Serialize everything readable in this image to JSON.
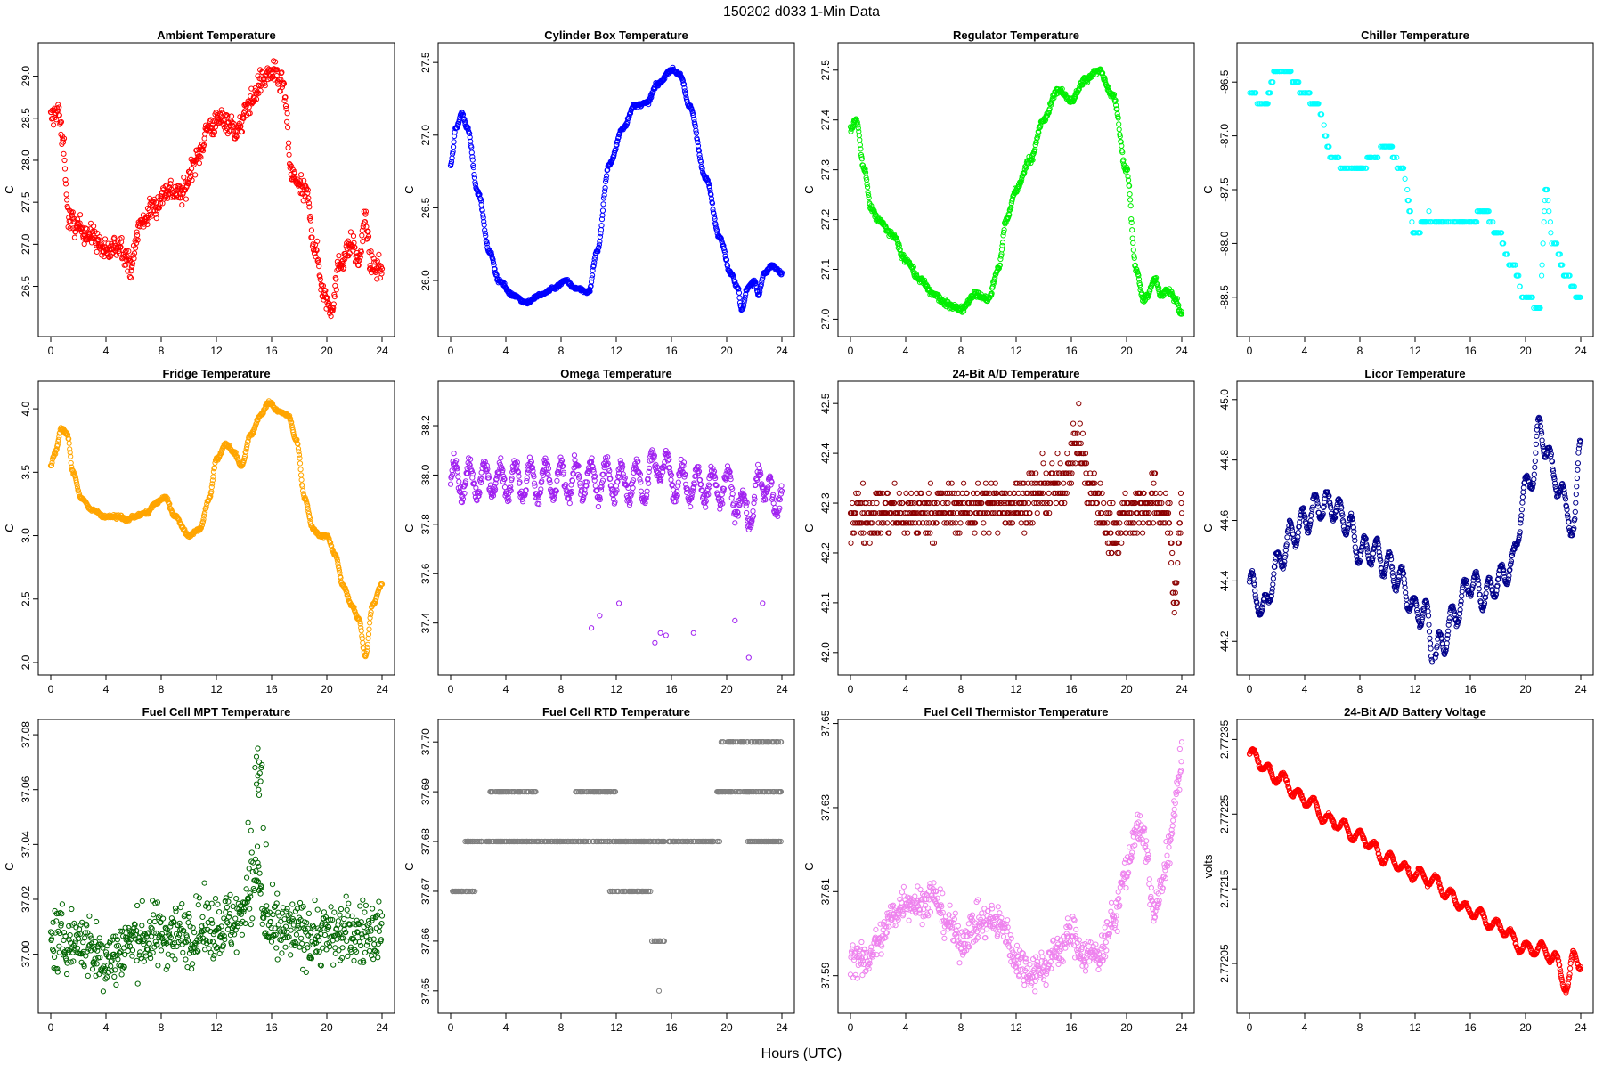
{
  "figure": {
    "title": "150202   d033   1-Min Data",
    "xlabel": "Hours (UTC)"
  },
  "chart_data": [
    {
      "type": "scatter",
      "title": "Ambient Temperature",
      "ylabel": "C",
      "color": "#ff0000",
      "xlim": [
        0,
        24
      ],
      "ylim": [
        26.05,
        29.25
      ],
      "yticks": [
        "26.5",
        "27.0",
        "27.5",
        "28.0",
        "28.5",
        "29.0"
      ],
      "noise": 0.13,
      "density": 1.0,
      "x": [
        0,
        0.5,
        0.9,
        1.3,
        2,
        3,
        4,
        5,
        5.8,
        6.5,
        7.5,
        8.5,
        9.5,
        10.5,
        11.5,
        12.5,
        13.5,
        14.5,
        15.3,
        16,
        16.8,
        17.5,
        18.5,
        19.2,
        19.8,
        20.3,
        21,
        21.8,
        22.3,
        22.8,
        23.2,
        24
      ],
      "y": [
        28.5,
        28.6,
        28.2,
        27.3,
        27.2,
        27.1,
        26.9,
        27.0,
        26.75,
        27.25,
        27.45,
        27.65,
        27.6,
        28.0,
        28.4,
        28.5,
        28.35,
        28.7,
        28.95,
        29.05,
        28.9,
        27.8,
        27.6,
        26.9,
        26.4,
        26.25,
        26.8,
        27.0,
        26.8,
        27.3,
        26.75,
        26.7
      ]
    },
    {
      "type": "scatter",
      "title": "Cylinder Box Temperature",
      "ylabel": "C",
      "color": "#0000ff",
      "xlim": [
        0,
        24
      ],
      "ylim": [
        25.7,
        27.55
      ],
      "yticks": [
        "26.0",
        "26.5",
        "27.0",
        "27.5"
      ],
      "noise": 0.012,
      "density": 1.0,
      "x": [
        0,
        0.4,
        0.8,
        1.2,
        2,
        2.8,
        3.5,
        4.5,
        5.5,
        6.5,
        7.5,
        8.3,
        9,
        10,
        10.6,
        11.5,
        12.5,
        13.3,
        14.2,
        15,
        16,
        16.6,
        17.3,
        18.5,
        19.5,
        20.3,
        20.8,
        21.1,
        21.5,
        22,
        22.3,
        22.7,
        23.3,
        24
      ],
      "y": [
        26.8,
        27.05,
        27.15,
        27.05,
        26.6,
        26.2,
        26.0,
        25.9,
        25.85,
        25.9,
        25.95,
        26.0,
        25.95,
        25.92,
        26.2,
        26.8,
        27.05,
        27.2,
        27.22,
        27.35,
        27.45,
        27.42,
        27.2,
        26.7,
        26.3,
        26.05,
        25.95,
        25.8,
        25.95,
        26.0,
        25.9,
        26.05,
        26.1,
        26.05
      ]
    },
    {
      "type": "scatter",
      "title": "Regulator Temperature",
      "ylabel": "C",
      "color": "#00ee00",
      "xlim": [
        0,
        24
      ],
      "ylim": [
        26.99,
        27.53
      ],
      "yticks": [
        "27.0",
        "27.1",
        "27.2",
        "27.3",
        "27.4",
        "27.5"
      ],
      "noise": 0.006,
      "density": 1.0,
      "x": [
        0,
        0.4,
        1,
        1.5,
        2,
        3,
        4,
        5,
        6,
        7,
        8,
        9,
        10,
        10.7,
        11.3,
        12,
        13,
        14,
        15,
        16,
        17,
        18,
        19,
        20,
        20.7,
        21.2,
        21.6,
        22,
        22.5,
        23,
        23.5,
        24
      ],
      "y": [
        27.38,
        27.4,
        27.3,
        27.22,
        27.2,
        27.17,
        27.12,
        27.08,
        27.05,
        27.03,
        27.02,
        27.05,
        27.04,
        27.1,
        27.2,
        27.26,
        27.32,
        27.4,
        27.46,
        27.44,
        27.48,
        27.5,
        27.45,
        27.3,
        27.1,
        27.04,
        27.05,
        27.08,
        27.05,
        27.06,
        27.04,
        27.01
      ]
    },
    {
      "type": "scatter",
      "title": "Chiller Temperature",
      "ylabel": "C",
      "color": "#00ffff",
      "xlim": [
        0,
        24
      ],
      "ylim": [
        -88.75,
        -86.25
      ],
      "yticks": [
        "-86.5",
        "-87.0",
        "-87.5",
        "-88.0",
        "-88.5"
      ],
      "noise": 0,
      "density": 0.55,
      "quantize": 0.1,
      "x": [
        0,
        1,
        2,
        3,
        4,
        5,
        6,
        7,
        8,
        9,
        10,
        11,
        12,
        13,
        14,
        15,
        16,
        17,
        18,
        19,
        20,
        21,
        21.5,
        22,
        23,
        24
      ],
      "y": [
        -86.55,
        -86.75,
        -86.4,
        -86.45,
        -86.6,
        -86.75,
        -87.2,
        -87.3,
        -87.3,
        -87.2,
        -87.1,
        -87.3,
        -87.9,
        -87.75,
        -87.8,
        -87.75,
        -87.8,
        -87.7,
        -87.9,
        -88.2,
        -88.5,
        -88.6,
        -87.5,
        -88.0,
        -88.3,
        -88.55
      ]
    },
    {
      "type": "scatter",
      "title": "Fridge Temperature",
      "ylabel": "C",
      "color": "#ffa500",
      "xlim": [
        0,
        24
      ],
      "ylim": [
        2.0,
        4.12
      ],
      "yticks": [
        "2.0",
        "2.5",
        "3.0",
        "3.5",
        "4.0"
      ],
      "noise": 0.012,
      "density": 1.0,
      "x": [
        0,
        0.3,
        0.8,
        1.2,
        1.6,
        2.2,
        3,
        4,
        5,
        5.5,
        6,
        7,
        7.5,
        8.3,
        9,
        10,
        10.8,
        11.5,
        12,
        12.7,
        13.3,
        13.8,
        14.5,
        15.2,
        15.8,
        16.5,
        17.2,
        17.8,
        18.4,
        19,
        19.5,
        20,
        20.6,
        21.2,
        21.8,
        22.3,
        22.8,
        23.3,
        24
      ],
      "y": [
        3.55,
        3.65,
        3.85,
        3.8,
        3.5,
        3.3,
        3.2,
        3.15,
        3.15,
        3.12,
        3.15,
        3.18,
        3.25,
        3.3,
        3.15,
        3.0,
        3.05,
        3.3,
        3.6,
        3.72,
        3.65,
        3.55,
        3.8,
        3.95,
        4.05,
        3.98,
        3.95,
        3.75,
        3.3,
        3.05,
        3.0,
        3.0,
        2.85,
        2.6,
        2.45,
        2.35,
        2.05,
        2.45,
        2.62
      ]
    },
    {
      "type": "scatter",
      "title": "Omega Temperature",
      "ylabel": "C",
      "color": "#a020f0",
      "xlim": [
        0,
        24
      ],
      "ylim": [
        37.24,
        38.33
      ],
      "yticks": [
        "37.4",
        "37.6",
        "37.8",
        "38.0",
        "38.2"
      ],
      "noise": 0.03,
      "density": 1.0,
      "wave": 0.07,
      "period": 1.1,
      "x": [
        0,
        4,
        8,
        12,
        14,
        15,
        16.5,
        18,
        20,
        21.5,
        22.5,
        23,
        23.5,
        24
      ],
      "y": [
        37.98,
        37.98,
        37.98,
        37.98,
        37.97,
        38.05,
        37.97,
        37.95,
        37.95,
        37.85,
        37.95,
        38.0,
        37.8,
        38.0
      ],
      "extra_x": [
        10.2,
        10.8,
        12.2,
        14.8,
        15.2,
        15.6,
        17.6,
        20.6,
        21.6,
        22.6
      ],
      "extra_y": [
        37.38,
        37.43,
        37.48,
        37.32,
        37.36,
        37.35,
        37.36,
        37.41,
        37.26,
        37.48
      ]
    },
    {
      "type": "scatter",
      "title": "24-Bit A/D Temperature",
      "ylabel": "C",
      "color": "#8b0000",
      "xlim": [
        0,
        24
      ],
      "ylim": [
        41.98,
        42.52
      ],
      "yticks": [
        "42.0",
        "42.1",
        "42.2",
        "42.3",
        "42.4",
        "42.5"
      ],
      "noise": 0.05,
      "density": 1.0,
      "quantize": 0.02,
      "x": [
        0,
        4,
        8,
        12,
        15,
        16.5,
        17.5,
        19,
        20,
        22,
        23,
        23.5,
        24
      ],
      "y": [
        42.28,
        42.28,
        42.29,
        42.3,
        42.33,
        42.42,
        42.32,
        42.24,
        42.28,
        42.3,
        42.28,
        42.1,
        42.3
      ]
    },
    {
      "type": "scatter",
      "title": "Licor Temperature",
      "ylabel": "C",
      "color": "#00008b",
      "xlim": [
        0,
        24
      ],
      "ylim": [
        44.13,
        45.02
      ],
      "yticks": [
        "44.2",
        "44.4",
        "44.6",
        "44.8",
        "45.0"
      ],
      "noise": 0.008,
      "density": 1.0,
      "wave": 0.045,
      "period": 0.9,
      "x": [
        0,
        0.5,
        1,
        2,
        3,
        4,
        5,
        6,
        7,
        8,
        9,
        10,
        11,
        12,
        12.7,
        13.4,
        14,
        15,
        16,
        17,
        18,
        19,
        20,
        20.5,
        21,
        21.5,
        22,
        23,
        23.5,
        24
      ],
      "y": [
        44.4,
        44.35,
        44.3,
        44.45,
        44.55,
        44.6,
        44.65,
        44.65,
        44.6,
        44.5,
        44.5,
        44.45,
        44.4,
        44.3,
        44.3,
        44.15,
        44.2,
        44.3,
        44.4,
        44.35,
        44.4,
        44.45,
        44.7,
        44.75,
        44.9,
        44.85,
        44.75,
        44.65,
        44.55,
        44.9
      ]
    },
    {
      "type": "scatter",
      "title": "Fuel Cell MPT Temperature",
      "ylabel": "C",
      "color": "#006400",
      "xlim": [
        0,
        24
      ],
      "ylim": [
        36.983,
        37.081
      ],
      "yticks": [
        "37.00",
        "37.02",
        "37.04",
        "37.06",
        "37.08"
      ],
      "noise": 0.011,
      "density": 1.0,
      "x": [
        0,
        2,
        4,
        6,
        8,
        10,
        12,
        13.5,
        14.5,
        15,
        15.5,
        16,
        18,
        20,
        22,
        24
      ],
      "y": [
        37.005,
        37.005,
        36.998,
        37.005,
        37.007,
        37.008,
        37.01,
        37.012,
        37.025,
        37.03,
        37.012,
        37.008,
        37.008,
        37.007,
        37.008,
        37.008
      ],
      "extra_x": [
        14.8,
        14.9,
        15.0,
        15.05,
        15.1,
        15.15,
        15.2,
        15.25,
        15.0,
        14.9,
        15.1,
        15.3,
        14.3,
        14.5,
        15.6,
        15.4
      ],
      "extra_y": [
        37.068,
        37.072,
        37.065,
        37.06,
        37.07,
        37.066,
        37.063,
        37.068,
        37.075,
        37.062,
        37.058,
        37.069,
        37.048,
        37.045,
        37.04,
        37.046
      ]
    },
    {
      "type": "scatter",
      "title": "Fuel Cell RTD Temperature",
      "ylabel": "C",
      "color": "#808080",
      "xlim": [
        0,
        24
      ],
      "ylim": [
        37.648,
        37.702
      ],
      "yticks": [
        "37.65",
        "37.66",
        "37.67",
        "37.68",
        "37.69",
        "37.70"
      ],
      "noise": 0,
      "density": 1.0,
      "levels": [
        {
          "y": 37.67,
          "from": 0,
          "to": 1.8
        },
        {
          "y": 37.68,
          "from": 1,
          "to": 15.5
        },
        {
          "y": 37.67,
          "from": 11.5,
          "to": 14.5
        },
        {
          "y": 37.69,
          "from": 2.8,
          "to": 6.2
        },
        {
          "y": 37.69,
          "from": 9,
          "to": 12
        },
        {
          "y": 37.68,
          "from": 15.8,
          "to": 19.5
        },
        {
          "y": 37.69,
          "from": 19.3,
          "to": 24
        },
        {
          "y": 37.7,
          "from": 19.5,
          "to": 24
        },
        {
          "y": 37.68,
          "from": 21.5,
          "to": 24
        },
        {
          "y": 37.66,
          "from": 14.5,
          "to": 15.6
        }
      ],
      "extra_x": [
        15.1
      ],
      "extra_y": [
        37.65
      ]
    },
    {
      "type": "scatter",
      "title": "Fuel Cell Thermistor Temperature",
      "ylabel": "C",
      "color": "#ee82ee",
      "xlim": [
        0,
        24
      ],
      "ylim": [
        37.584,
        37.648
      ],
      "yticks": [
        "37.59",
        "37.61",
        "37.63",
        "37.65"
      ],
      "noise": 0.004,
      "density": 1.0,
      "x": [
        0,
        1,
        2,
        3,
        4,
        5,
        6,
        7,
        8,
        9,
        10,
        11,
        12,
        13,
        14,
        15,
        16,
        17,
        18,
        19,
        20,
        20.7,
        21.3,
        22,
        22.5,
        23,
        24
      ],
      "y": [
        37.595,
        37.593,
        37.598,
        37.604,
        37.608,
        37.607,
        37.609,
        37.603,
        37.598,
        37.602,
        37.603,
        37.602,
        37.594,
        37.591,
        37.592,
        37.596,
        37.6,
        37.595,
        37.595,
        37.603,
        37.615,
        37.625,
        37.622,
        37.605,
        37.61,
        37.62,
        37.64
      ]
    },
    {
      "type": "scatter",
      "title": "24-Bit A/D Battery Voltage",
      "ylabel": "volts",
      "color": "#ff0000",
      "xlim": [
        0,
        24
      ],
      "ylim": [
        2.772,
        2.77236
      ],
      "yticks": [
        "2.77205",
        "2.77215",
        "2.77225",
        "2.77235"
      ],
      "noise": 2e-06,
      "density": 1.0,
      "wave": 8e-06,
      "period": 1.1,
      "x": [
        0,
        2,
        4,
        6,
        8,
        10,
        12,
        13.5,
        14.5,
        16,
        18,
        20,
        21,
        22,
        23,
        23.5,
        24
      ],
      "y": [
        2.77233,
        2.7723,
        2.77227,
        2.77224,
        2.77222,
        2.77219,
        2.77217,
        2.77216,
        2.77214,
        2.77212,
        2.7721,
        2.77207,
        2.77207,
        2.77206,
        2.77202,
        2.77206,
        2.77205
      ]
    }
  ]
}
